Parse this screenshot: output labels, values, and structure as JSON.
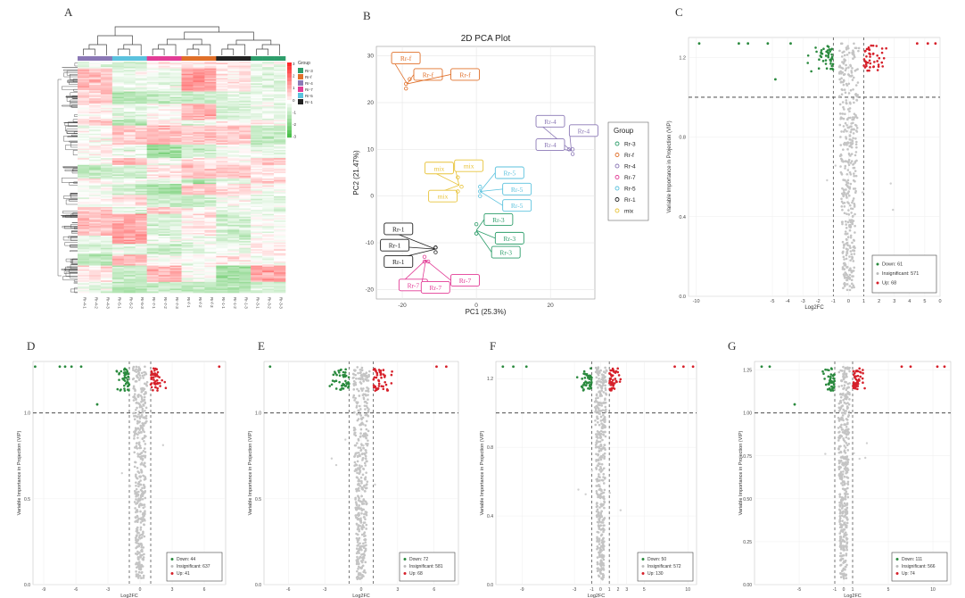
{
  "panels": {
    "A": "A",
    "B": "B",
    "C": "C",
    "D": "D",
    "E": "E",
    "F": "F",
    "G": "G"
  },
  "heatmap": {
    "legend_title": "Group",
    "group_labels": [
      "Rr-3",
      "Rr-f",
      "Rr-4",
      "Rr-7",
      "Rr-5",
      "Rr-1"
    ],
    "group_colors": [
      "#2e9e6b",
      "#e0702a",
      "#8b78b6",
      "#e23c96",
      "#5bc2de",
      "#222222"
    ],
    "scale_labels": [
      "3",
      "2",
      "1",
      "0",
      "-1",
      "-2",
      "-3"
    ],
    "column_labels": [
      "Rr-4-1",
      "Rr-4-2",
      "Rr-4-3",
      "Rr-5-1",
      "Rr-5-2",
      "Rr-5-3",
      "Rr-7-1",
      "Rr-7-2",
      "Rr-7-3",
      "Rr-f-1",
      "Rr-f-2",
      "Rr-f-3",
      "Rr-1-1",
      "Rr-1-2",
      "Rr-1-3",
      "Rr-3-1",
      "Rr-3-2",
      "Rr-3-3"
    ]
  },
  "pca": {
    "title": "2D PCA Plot",
    "xlabel": "PC1 (25.3%)",
    "ylabel": "PC2 (21.47%)",
    "legend_title": "Group",
    "x_ticks": [
      "-20",
      "0",
      "20"
    ],
    "y_ticks": [
      "30",
      "20",
      "10",
      "0",
      "-10",
      "-20"
    ]
  },
  "chart_data": [
    {
      "type": "heatmap",
      "panel": "A",
      "legend_title": "Group",
      "groups": [
        "Rr-3",
        "Rr-f",
        "Rr-4",
        "Rr-7",
        "Rr-5",
        "Rr-1"
      ],
      "color_scale": [
        -3,
        3
      ],
      "columns": [
        "Rr-4-1",
        "Rr-4-2",
        "Rr-4-3",
        "Rr-5-1",
        "Rr-5-2",
        "Rr-5-3",
        "Rr-7-1",
        "Rr-7-2",
        "Rr-7-3",
        "Rr-f-1",
        "Rr-f-2",
        "Rr-f-3",
        "Rr-1-1",
        "Rr-1-2",
        "Rr-1-3",
        "Rr-3-1",
        "Rr-3-2",
        "Rr-3-3"
      ],
      "column_group_colors": [
        "#8b78b6",
        "#5bc2de",
        "#e23c96",
        "#e0702a",
        "#222222",
        "#2e9e6b"
      ]
    },
    {
      "type": "scatter",
      "panel": "B",
      "title": "2D PCA Plot",
      "xlabel": "PC1 (25.3%)",
      "ylabel": "PC2 (21.47%)",
      "xlim": [
        -27,
        32
      ],
      "ylim": [
        -22,
        32
      ],
      "legend_placement": "right",
      "series": [
        {
          "name": "Rr-3",
          "color": "#2e9e6b",
          "points": [
            [
              0,
              -6
            ],
            [
              0,
              -8
            ],
            [
              0,
              -8
            ]
          ],
          "labels": [
            {
              "text": "Rr-3",
              "x": 5,
              "y": -5
            },
            {
              "text": "Rr-3",
              "x": 8,
              "y": -9
            },
            {
              "text": "Rr-3",
              "x": 7,
              "y": -12
            }
          ]
        },
        {
          "name": "Rr-f",
          "color": "#e0702a",
          "points": [
            [
              -19,
              24
            ],
            [
              -19,
              23
            ],
            [
              -18,
              25
            ]
          ],
          "labels": [
            {
              "text": "Rr-f",
              "x": -20,
              "y": 29.5
            },
            {
              "text": "Rr-f",
              "x": -14,
              "y": 26
            },
            {
              "text": "Rr-f",
              "x": -4,
              "y": 26
            }
          ]
        },
        {
          "name": "Rr-4",
          "color": "#8b78b6",
          "points": [
            [
              26,
              9
            ],
            [
              25,
              10
            ],
            [
              26,
              10
            ]
          ],
          "labels": [
            {
              "text": "Rr-4",
              "x": 19,
              "y": 16
            },
            {
              "text": "Rr-4",
              "x": 28,
              "y": 14
            },
            {
              "text": "Rr-4",
              "x": 19,
              "y": 11
            }
          ]
        },
        {
          "name": "Rr-7",
          "color": "#e23c96",
          "points": [
            [
              -14,
              -14
            ],
            [
              -13,
              -14
            ],
            [
              -14,
              -13
            ]
          ],
          "labels": [
            {
              "text": "Rr-7",
              "x": -18,
              "y": -19
            },
            {
              "text": "Rr-7",
              "x": -12,
              "y": -19.5
            },
            {
              "text": "Rr-7",
              "x": -4,
              "y": -18
            }
          ]
        },
        {
          "name": "Rr-5",
          "color": "#5bc2de",
          "points": [
            [
              1,
              2
            ],
            [
              1,
              1
            ],
            [
              1,
              0
            ]
          ],
          "labels": [
            {
              "text": "Rr-5",
              "x": 8,
              "y": 5
            },
            {
              "text": "Rr-5",
              "x": 10,
              "y": 1.5
            },
            {
              "text": "Rr-5",
              "x": 10,
              "y": -2
            }
          ]
        },
        {
          "name": "Rr-1",
          "color": "#222222",
          "points": [
            [
              -11,
              -11
            ],
            [
              -11,
              -12
            ],
            [
              -11,
              -11
            ]
          ],
          "labels": [
            {
              "text": "Rr-1",
              "x": -22,
              "y": -7
            },
            {
              "text": "Rr-1",
              "x": -23,
              "y": -10.5
            },
            {
              "text": "Rr-1",
              "x": -22,
              "y": -14
            }
          ]
        },
        {
          "name": "mix",
          "color": "#e8c33a",
          "points": [
            [
              -5,
              4
            ],
            [
              -4,
              2
            ],
            [
              -5,
              1
            ]
          ],
          "labels": [
            {
              "text": "mix",
              "x": -11,
              "y": 6
            },
            {
              "text": "mix",
              "x": -3,
              "y": 6.5
            },
            {
              "text": "mix",
              "x": -10,
              "y": 0
            }
          ]
        }
      ]
    },
    {
      "type": "scatter",
      "panel": "C",
      "xlabel": "Log2FC",
      "ylabel": "Variable Importance in Projection (VIP)",
      "x_ticks": [
        "-10",
        "-5",
        "-4",
        "-3",
        "-2",
        "-1",
        "0",
        "1",
        "2",
        "3",
        "4",
        "5",
        "0"
      ],
      "y_ticks": [
        "1.2",
        "0.8",
        "0.4",
        "0.0"
      ],
      "ylim": [
        0,
        1.3
      ],
      "vip_threshold": 1.0,
      "legend": [
        {
          "label": "Down: 61",
          "color": "#2a8a3e"
        },
        {
          "label": "Insignificant: 571",
          "color": "#bbbbbb"
        },
        {
          "label": "Up: 68",
          "color": "#d6202a"
        }
      ]
    },
    {
      "type": "scatter",
      "panel": "D",
      "xlabel": "Log2FC",
      "ylabel": "Variable Importance in Projection (VIP)",
      "x_ticks": [
        "-9",
        "-6",
        "-3",
        "0",
        "3",
        "6"
      ],
      "y_ticks": [
        "1.0",
        "0.5",
        "0.0"
      ],
      "ylim": [
        0,
        1.3
      ],
      "vip_threshold": 1.0,
      "legend": [
        {
          "label": "Down: 44",
          "color": "#2a8a3e"
        },
        {
          "label": "Insignificant: 637",
          "color": "#bbbbbb"
        },
        {
          "label": "Up: 41",
          "color": "#d6202a"
        }
      ]
    },
    {
      "type": "scatter",
      "panel": "E",
      "xlabel": "Log2FC",
      "ylabel": "Variable Importance in Projection (VIP)",
      "x_ticks": [
        "-6",
        "-3",
        "0",
        "3",
        "6"
      ],
      "y_ticks": [
        "1.0",
        "0.5",
        "0.0"
      ],
      "ylim": [
        0,
        1.3
      ],
      "vip_threshold": 1.0,
      "legend": [
        {
          "label": "Down: 72",
          "color": "#2a8a3e"
        },
        {
          "label": "Insignificant: 581",
          "color": "#bbbbbb"
        },
        {
          "label": "Up: 68",
          "color": "#d6202a"
        }
      ]
    },
    {
      "type": "scatter",
      "panel": "F",
      "xlabel": "Log2FC",
      "ylabel": "Variable Importance in Projection (VIP)",
      "x_ticks": [
        "-9",
        "-3",
        "-1",
        "0",
        "1",
        "2",
        "3",
        "5",
        "10"
      ],
      "y_ticks": [
        "1.2",
        "0.8",
        "0.4",
        "0.0"
      ],
      "ylim": [
        0,
        1.3
      ],
      "vip_threshold": 1.0,
      "legend": [
        {
          "label": "Down: 50",
          "color": "#2a8a3e"
        },
        {
          "label": "Insignificant: 572",
          "color": "#bbbbbb"
        },
        {
          "label": "Up: 130",
          "color": "#d6202a"
        }
      ]
    },
    {
      "type": "scatter",
      "panel": "G",
      "xlabel": "Log2FC",
      "ylabel": "Variable Importance in Projection (VIP)",
      "x_ticks": [
        "-5",
        "-1",
        "0",
        "1",
        "5",
        "10"
      ],
      "y_ticks": [
        "1.25",
        "1.00",
        "0.75",
        "0.50",
        "0.25",
        "0.00"
      ],
      "ylim": [
        0,
        1.3
      ],
      "vip_threshold": 1.0,
      "legend": [
        {
          "label": "Down: 111",
          "color": "#2a8a3e"
        },
        {
          "label": "Insignificant: 566",
          "color": "#bbbbbb"
        },
        {
          "label": "Up: 74",
          "color": "#d6202a"
        }
      ]
    }
  ]
}
